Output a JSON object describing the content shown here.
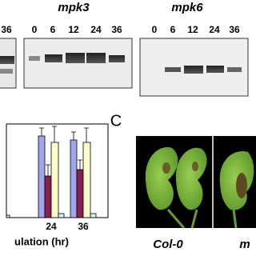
{
  "blots": [
    {
      "lanes": [
        "36"
      ]
    },
    {
      "label": "mpk3",
      "lanes": [
        "0",
        "6",
        "12",
        "24",
        "36"
      ]
    },
    {
      "label": "mpk6",
      "lanes": [
        "0",
        "6",
        "12",
        "24",
        "36"
      ]
    }
  ],
  "bar_panel": {
    "x_labels": [
      "24",
      "36"
    ],
    "x_axis_label": "ulation (hr)"
  },
  "leaf_panel": {
    "letter": "C",
    "labels": [
      "Col-0",
      "m"
    ]
  }
}
